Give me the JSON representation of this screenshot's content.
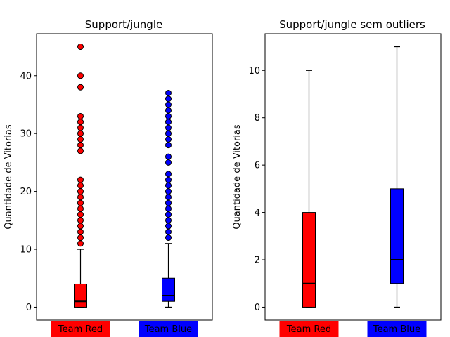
{
  "chart_data": [
    {
      "type": "boxplot",
      "title": "Support/jungle",
      "xlabel": "",
      "ylabel": "Quantidade de Vitorias",
      "ylim": [
        -2.25,
        47.25
      ],
      "yticks": [
        0,
        10,
        20,
        30,
        40
      ],
      "categories": [
        "Team Red",
        "Team Blue"
      ],
      "category_colors": [
        "#ff0000",
        "#0000ff"
      ],
      "boxes": [
        {
          "name": "Team Red",
          "color": "#ff0000",
          "whislo": 0,
          "q1": 0,
          "med": 1,
          "q3": 4,
          "whishi": 10,
          "fliers": [
            11,
            12,
            13,
            14,
            15,
            16,
            17,
            18,
            19,
            20,
            21,
            22,
            27,
            28,
            29,
            30,
            31,
            32,
            33,
            38,
            40,
            45
          ]
        },
        {
          "name": "Team Blue",
          "color": "#0000ff",
          "whislo": 0,
          "q1": 1,
          "med": 2,
          "q3": 5,
          "whishi": 11,
          "fliers": [
            12,
            13,
            14,
            15,
            16,
            17,
            18,
            19,
            20,
            21,
            22,
            23,
            25,
            26,
            28,
            29,
            30,
            31,
            32,
            33,
            34,
            35,
            36,
            37
          ]
        }
      ]
    },
    {
      "type": "boxplot",
      "title": "Support/jungle sem outliers",
      "xlabel": "",
      "ylabel": "Quantidade de Vitorias",
      "ylim": [
        -0.55,
        11.55
      ],
      "yticks": [
        0,
        2,
        4,
        6,
        8,
        10
      ],
      "categories": [
        "Team Red",
        "Team Blue"
      ],
      "category_colors": [
        "#ff0000",
        "#0000ff"
      ],
      "boxes": [
        {
          "name": "Team Red",
          "color": "#ff0000",
          "whislo": 0,
          "q1": 0,
          "med": 1,
          "q3": 4,
          "whishi": 10,
          "fliers": []
        },
        {
          "name": "Team Blue",
          "color": "#0000ff",
          "whislo": 0,
          "q1": 1,
          "med": 2,
          "q3": 5,
          "whishi": 11,
          "fliers": []
        }
      ]
    }
  ]
}
